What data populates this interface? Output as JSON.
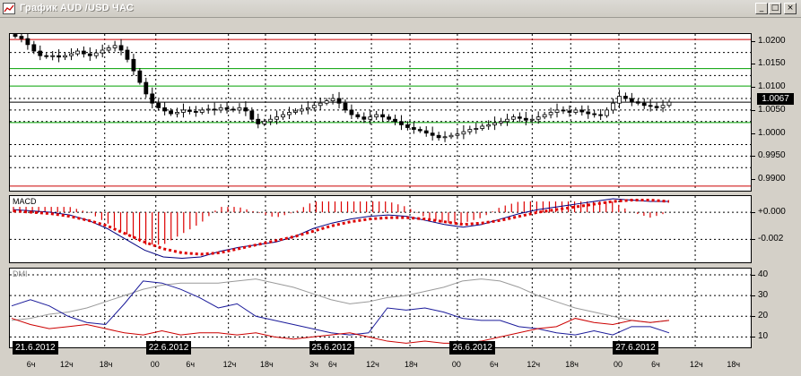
{
  "window": {
    "title": "График AUD /USD  ЧАС",
    "buttons": {
      "minimize": "_",
      "maximize": "□",
      "close": "×"
    }
  },
  "price": {
    "ticks": [
      "1.0200",
      "1.0150",
      "1.0100",
      "1.0050",
      "1.0000",
      "0.9950",
      "0.9900"
    ],
    "current": "1.0067",
    "red_levels": [
      1.0203,
      0.9885
    ],
    "green_levels": [
      1.014,
      1.0102,
      1.0023
    ],
    "black_level": 1.0067,
    "dashed_levels": [
      1.0175,
      1.0125,
      1.0075,
      1.005,
      1.0025,
      0.9975,
      0.995,
      0.9925
    ],
    "ylim": [
      0.9875,
      1.0215
    ]
  },
  "macd": {
    "label": "MACD",
    "ticks": [
      "+0.000",
      "-0.002"
    ]
  },
  "dmi": {
    "label": "DMI",
    "ticks": [
      "40",
      "30",
      "20",
      "10"
    ]
  },
  "xaxis": {
    "dates": [
      {
        "label": "21.6.2012",
        "pos": 0.005
      },
      {
        "label": "22.6.2012",
        "pos": 0.185
      },
      {
        "label": "25.6.2012",
        "pos": 0.405
      },
      {
        "label": "26.6.2012",
        "pos": 0.595
      },
      {
        "label": "27.6.2012",
        "pos": 0.815
      }
    ],
    "hours": [
      {
        "label": "6ч",
        "pos": 0.03
      },
      {
        "label": "12ч",
        "pos": 0.075
      },
      {
        "label": "18ч",
        "pos": 0.128
      },
      {
        "label": "00",
        "pos": 0.197
      },
      {
        "label": "6ч",
        "pos": 0.245
      },
      {
        "label": "12ч",
        "pos": 0.295
      },
      {
        "label": "18ч",
        "pos": 0.345
      },
      {
        "label": "3ч",
        "pos": 0.412
      },
      {
        "label": "6ч",
        "pos": 0.437
      },
      {
        "label": "12ч",
        "pos": 0.488
      },
      {
        "label": "18ч",
        "pos": 0.54
      },
      {
        "label": "00",
        "pos": 0.604
      },
      {
        "label": "6ч",
        "pos": 0.655
      },
      {
        "label": "12ч",
        "pos": 0.705
      },
      {
        "label": "18ч",
        "pos": 0.757
      },
      {
        "label": "00",
        "pos": 0.822
      },
      {
        "label": "6ч",
        "pos": 0.873
      },
      {
        "label": "12ч",
        "pos": 0.925
      },
      {
        "label": "18ч",
        "pos": 0.975
      }
    ]
  },
  "chart_data": [
    {
      "type": "candlestick",
      "title": "График AUD /USD  ЧАС",
      "ylim": [
        0.9875,
        1.0215
      ],
      "close": [
        1.021,
        1.0205,
        1.0192,
        1.0178,
        1.0168,
        1.0166,
        1.0168,
        1.0165,
        1.0168,
        1.0172,
        1.0178,
        1.0172,
        1.0168,
        1.0174,
        1.018,
        1.0185,
        1.019,
        1.018,
        1.016,
        1.0135,
        1.011,
        1.0085,
        1.0065,
        1.0055,
        1.0048,
        1.0042,
        1.0045,
        1.005,
        1.0047,
        1.0045,
        1.005,
        1.0052,
        1.005,
        1.0055,
        1.0052,
        1.005,
        1.0055,
        1.0048,
        1.003,
        1.002,
        1.0025,
        1.003,
        1.0035,
        1.004,
        1.0045,
        1.0048,
        1.0052,
        1.0055,
        1.006,
        1.0065,
        1.007,
        1.0075,
        1.0065,
        1.005,
        1.004,
        1.0035,
        1.003,
        1.0035,
        1.004,
        1.0035,
        1.003,
        1.0025,
        1.0018,
        1.0012,
        1.0008,
        1.0005,
        1.0,
        0.9995,
        0.999,
        0.9992,
        0.9995,
        0.9998,
        1.0003,
        1.0008,
        1.001,
        1.0015,
        1.0018,
        1.0022,
        1.0025,
        1.003,
        1.0035,
        1.0032,
        1.0028,
        1.003,
        1.0035,
        1.004,
        1.0045,
        1.005,
        1.0048,
        1.0045,
        1.005,
        1.0046,
        1.0042,
        1.004,
        1.0038,
        1.005,
        1.0065,
        1.008,
        1.0075,
        1.0068,
        1.0065,
        1.006,
        1.0058,
        1.0055,
        1.006,
        1.0067
      ]
    },
    {
      "type": "line",
      "title": "MACD",
      "ylim": [
        -0.0037,
        0.0012
      ],
      "series": [
        {
          "values": [
            0.0002,
            0.0001,
            0.0,
            -0.0002,
            -0.0006,
            -0.0012,
            -0.002,
            -0.0028,
            -0.0033,
            -0.0034,
            -0.0033,
            -0.0029,
            -0.0026,
            -0.0024,
            -0.0022,
            -0.0018,
            -0.0012,
            -0.0008,
            -0.0005,
            -0.0003,
            -0.0002,
            -0.0003,
            -0.0006,
            -0.0009,
            -0.0011,
            -0.0009,
            -0.0005,
            -0.0001,
            0.0002,
            0.0004,
            0.0006,
            0.0008,
            0.001,
            0.0009,
            0.0008,
            0.0008
          ],
          "color": "#000080"
        },
        {
          "values": [
            0.0001,
            0.0,
            -0.0001,
            -0.0003,
            -0.0006,
            -0.001,
            -0.0016,
            -0.0022,
            -0.0027,
            -0.003,
            -0.0031,
            -0.003,
            -0.0027,
            -0.0024,
            -0.0021,
            -0.0018,
            -0.0014,
            -0.001,
            -0.0007,
            -0.0005,
            -0.0004,
            -0.0004,
            -0.0005,
            -0.0007,
            -0.0009,
            -0.0008,
            -0.0006,
            -0.0003,
            0.0,
            0.0002,
            0.0004,
            0.0006,
            0.0008,
            0.0009,
            0.0009,
            0.0008
          ],
          "color": "#dd0000"
        }
      ]
    },
    {
      "type": "line",
      "title": "DMI",
      "ylim": [
        5,
        43
      ],
      "series": [
        {
          "values": [
            18,
            19,
            21,
            22,
            24,
            27,
            30,
            33,
            35,
            36,
            36,
            36,
            37,
            38,
            36,
            34,
            31,
            28,
            26,
            27,
            29,
            30,
            32,
            34,
            37,
            38,
            37,
            34,
            30,
            27,
            24,
            22,
            20,
            18,
            17,
            18
          ],
          "color": "#9a9a9a"
        },
        {
          "values": [
            25,
            28,
            25,
            20,
            17,
            16,
            26,
            37,
            36,
            33,
            29,
            24,
            26,
            20,
            18,
            16,
            14,
            12,
            11,
            12,
            24,
            23,
            24,
            22,
            19,
            18,
            18,
            15,
            14,
            12,
            11,
            13,
            11,
            15,
            15,
            12
          ],
          "color": "#1a1a9a"
        },
        {
          "values": [
            19,
            16,
            14,
            15,
            16,
            14,
            12,
            11,
            13,
            11,
            12,
            12,
            11,
            12,
            10,
            9,
            10,
            11,
            12,
            10,
            8,
            7,
            8,
            7,
            7,
            8,
            10,
            12,
            14,
            15,
            19,
            17,
            16,
            18,
            17,
            18
          ],
          "color": "#cc0000"
        }
      ]
    }
  ]
}
